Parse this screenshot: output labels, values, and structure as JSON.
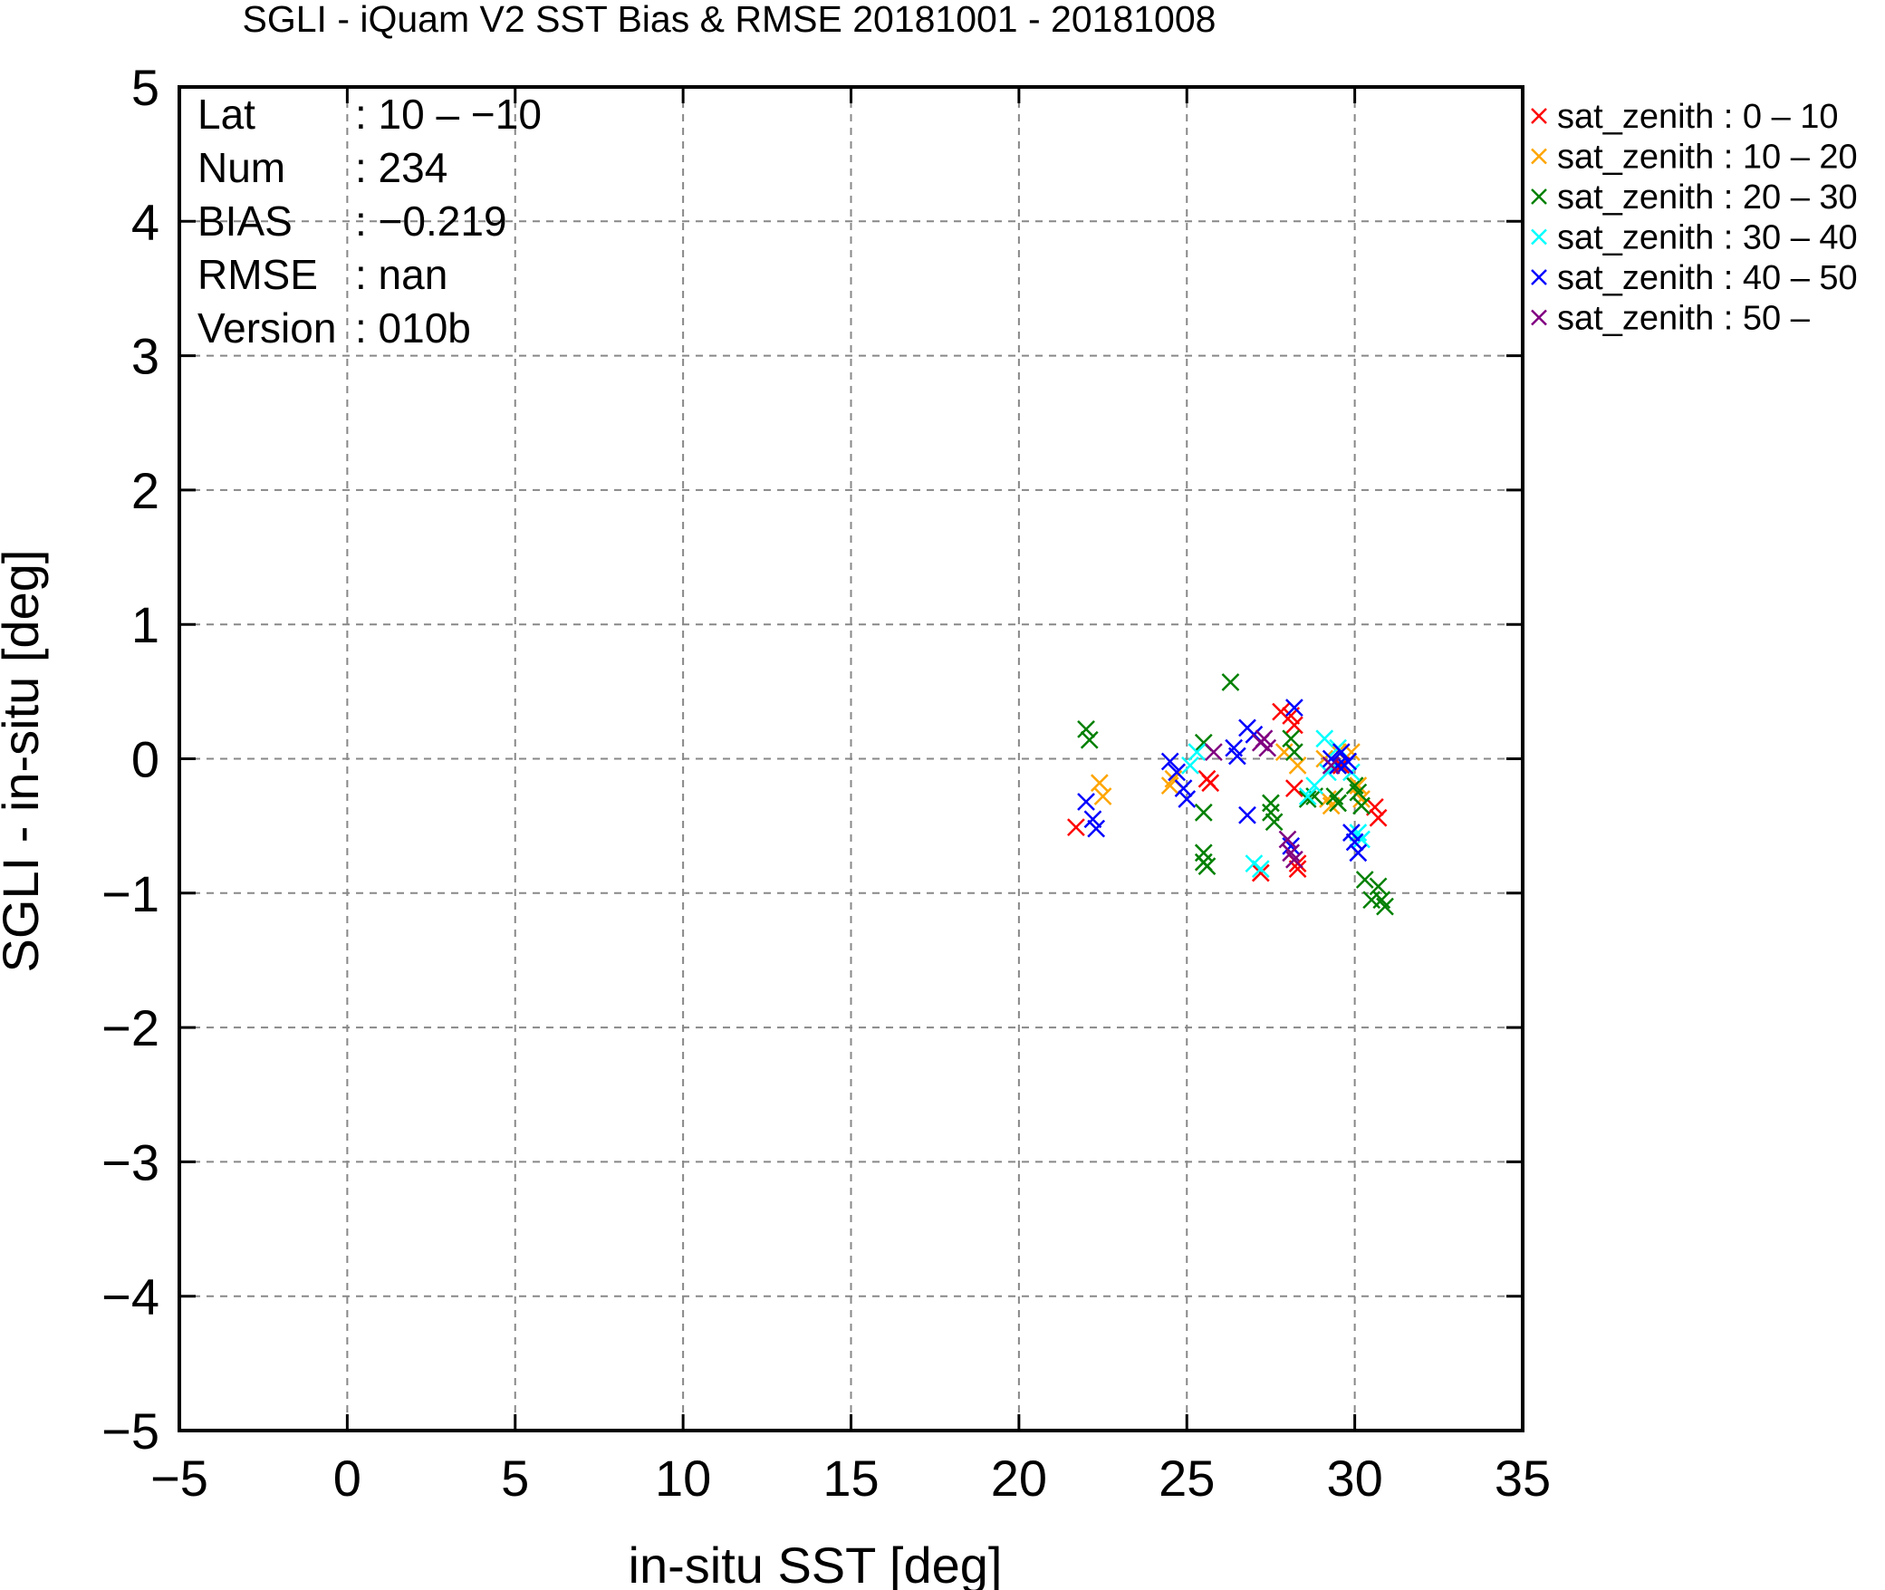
{
  "chart_data": {
    "type": "scatter",
    "title": "SGLI - iQuam V2 SST Bias & RMSE 20181001 - 20181008",
    "xlabel": "in-situ SST [deg]",
    "ylabel": "SGLI - in-situ [deg]",
    "xlim": [
      -5,
      35
    ],
    "ylim": [
      -5,
      5
    ],
    "xticks": [
      -5,
      0,
      5,
      10,
      15,
      20,
      25,
      30,
      35
    ],
    "yticks": [
      -5,
      -4,
      -3,
      -2,
      -1,
      0,
      1,
      2,
      3,
      4,
      5
    ],
    "xtick_labels": [
      "−5",
      "0",
      "5",
      "10",
      "15",
      "20",
      "25",
      "30",
      "35"
    ],
    "ytick_labels": [
      "−5",
      "−4",
      "−3",
      "−2",
      "−1",
      "0",
      "1",
      "2",
      "3",
      "4",
      "5"
    ],
    "grid": true,
    "legend_position": "outside right, top",
    "marker": "x",
    "stats": [
      {
        "label": "Lat",
        "value": ": 10 – −10"
      },
      {
        "label": "Num",
        "value": ": 234"
      },
      {
        "label": "BIAS",
        "value": ": −0.219"
      },
      {
        "label": "RMSE",
        "value": ": nan"
      },
      {
        "label": "Version",
        "value": ": 010b"
      }
    ],
    "series": [
      {
        "name": "sat_zenith :  0 – 10",
        "color": "#ff0000",
        "points": [
          [
            21.7,
            -0.51
          ],
          [
            25.6,
            -0.15
          ],
          [
            25.7,
            -0.18
          ],
          [
            27.2,
            -0.85
          ],
          [
            27.8,
            0.35
          ],
          [
            28.1,
            0.32
          ],
          [
            28.2,
            0.25
          ],
          [
            28.2,
            -0.22
          ],
          [
            28.3,
            -0.82
          ],
          [
            28.3,
            -0.78
          ],
          [
            30.6,
            -0.36
          ],
          [
            30.7,
            -0.44
          ],
          [
            29.6,
            -0.05
          ]
        ]
      },
      {
        "name": "sat_zenith : 10 – 20",
        "color": "#ffa500",
        "points": [
          [
            22.4,
            -0.18
          ],
          [
            22.5,
            -0.28
          ],
          [
            24.5,
            -0.2
          ],
          [
            24.6,
            -0.15
          ],
          [
            27.9,
            0.05
          ],
          [
            28.3,
            -0.05
          ],
          [
            29.2,
            -0.3
          ],
          [
            29.3,
            -0.35
          ],
          [
            29.5,
            0.05
          ],
          [
            29.9,
            0.05
          ],
          [
            30.1,
            -0.2
          ],
          [
            30.2,
            -0.3
          ],
          [
            29.1,
            0.0
          ]
        ]
      },
      {
        "name": "sat_zenith : 20 – 30",
        "color": "#008000",
        "points": [
          [
            22.0,
            0.22
          ],
          [
            22.1,
            0.14
          ],
          [
            25.5,
            -0.4
          ],
          [
            25.5,
            -0.7
          ],
          [
            25.5,
            -0.77
          ],
          [
            25.6,
            -0.8
          ],
          [
            25.5,
            0.12
          ],
          [
            26.3,
            0.57
          ],
          [
            27.5,
            -0.33
          ],
          [
            27.5,
            -0.4
          ],
          [
            27.6,
            -0.47
          ],
          [
            28.1,
            0.15
          ],
          [
            28.2,
            0.05
          ],
          [
            28.6,
            -0.3
          ],
          [
            28.8,
            -0.28
          ],
          [
            29.4,
            -0.28
          ],
          [
            29.5,
            -0.33
          ],
          [
            29.5,
            -0.05
          ],
          [
            30.0,
            -0.2
          ],
          [
            30.1,
            -0.25
          ],
          [
            30.2,
            -0.35
          ],
          [
            30.3,
            -0.9
          ],
          [
            30.5,
            -1.05
          ],
          [
            30.7,
            -0.95
          ],
          [
            30.8,
            -1.05
          ],
          [
            30.9,
            -1.1
          ]
        ]
      },
      {
        "name": "sat_zenith : 30 – 40",
        "color": "#00ffff",
        "points": [
          [
            25.1,
            -0.05
          ],
          [
            25.3,
            0.05
          ],
          [
            27.0,
            -0.78
          ],
          [
            27.2,
            -0.82
          ],
          [
            28.6,
            -0.28
          ],
          [
            28.8,
            -0.2
          ],
          [
            29.1,
            0.15
          ],
          [
            29.2,
            -0.1
          ],
          [
            29.5,
            0.08
          ],
          [
            30.1,
            -0.55
          ],
          [
            30.2,
            -0.6
          ],
          [
            29.9,
            -0.1
          ]
        ]
      },
      {
        "name": "sat_zenith : 40 – 50",
        "color": "#0000ff",
        "points": [
          [
            22.0,
            -0.32
          ],
          [
            22.2,
            -0.45
          ],
          [
            22.3,
            -0.52
          ],
          [
            24.5,
            -0.02
          ],
          [
            24.7,
            -0.1
          ],
          [
            24.9,
            -0.22
          ],
          [
            25.0,
            -0.3
          ],
          [
            26.4,
            0.08
          ],
          [
            26.5,
            0.02
          ],
          [
            26.8,
            -0.42
          ],
          [
            26.8,
            0.23
          ],
          [
            27.0,
            0.18
          ],
          [
            28.2,
            0.38
          ],
          [
            28.1,
            -0.65
          ],
          [
            29.3,
            0.0
          ],
          [
            29.5,
            -0.05
          ],
          [
            29.6,
            0.05
          ],
          [
            29.7,
            -0.05
          ],
          [
            29.8,
            -0.02
          ],
          [
            29.9,
            -0.55
          ],
          [
            30.0,
            -0.62
          ],
          [
            30.1,
            -0.7
          ]
        ]
      },
      {
        "name": "sat_zenith : 50 –",
        "color": "#800080",
        "points": [
          [
            25.8,
            0.05
          ],
          [
            27.2,
            0.12
          ],
          [
            27.3,
            0.15
          ],
          [
            27.4,
            0.08
          ],
          [
            28.0,
            -0.6
          ],
          [
            28.1,
            -0.7
          ],
          [
            28.2,
            -0.75
          ],
          [
            29.3,
            -0.05
          ]
        ]
      }
    ]
  }
}
